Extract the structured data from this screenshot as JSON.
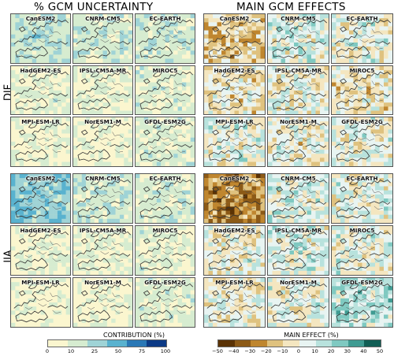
{
  "titles": {
    "left": "% GCM UNCERTAINTY",
    "right": "MAIN GCM EFFECTS"
  },
  "seasons": [
    "DJF",
    "JJA"
  ],
  "models": [
    "CanESM2",
    "CNRM-CM5",
    "EC-EARTH",
    "HadGEM2-ES",
    "IPSL-CM5A-MR",
    "MIROC5",
    "MPI-ESM-LR",
    "NorESM1-M",
    "GFDL-ESM2G"
  ],
  "colorbars": {
    "contribution": {
      "title": "CONTRIBUTION (%)",
      "ticks": [
        "0",
        "10",
        "25",
        "50",
        "75",
        "100"
      ],
      "colors": [
        "#fbf6cf",
        "#d6ecd0",
        "#9fd3d6",
        "#59b2cf",
        "#2a78b6",
        "#0c3a86"
      ]
    },
    "effect": {
      "title": "MAIN EFFECT (%)",
      "ticks": [
        "−50",
        "−40",
        "−30",
        "−20",
        "−10",
        "0",
        "10",
        "20",
        "30",
        "40",
        "50"
      ],
      "colors": [
        "#5b3305",
        "#8c5a17",
        "#bf862f",
        "#dfc27f",
        "#f4e6c0",
        "#e8f4f2",
        "#b8e2dd",
        "#7fc9c1",
        "#3f9b92",
        "#115e55"
      ]
    }
  }
}
